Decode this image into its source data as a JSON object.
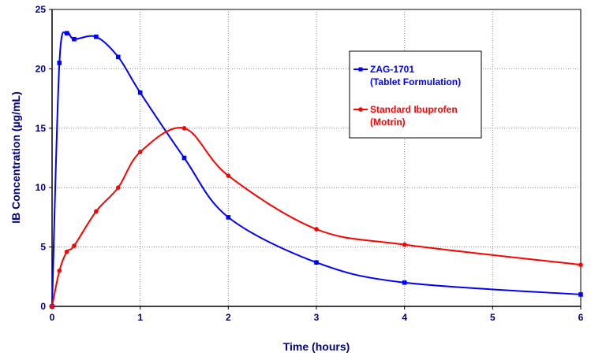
{
  "chart_data": {
    "type": "line",
    "title": "",
    "xlabel": "Time (hours)",
    "ylabel": "IB Concentration (µg/mL)",
    "xlim": [
      0,
      6
    ],
    "ylim": [
      0,
      25
    ],
    "x_ticks": [
      0,
      1,
      2,
      3,
      4,
      5,
      6
    ],
    "y_ticks": [
      0,
      5,
      10,
      15,
      20,
      25
    ],
    "grid": true,
    "legend_position": "top-right",
    "series": [
      {
        "name_line1": "ZAG-1701",
        "name_line2": "(Tablet Formulation)",
        "color": "#0000ff",
        "marker": "square",
        "x": [
          0,
          0.083,
          0.167,
          0.25,
          0.5,
          0.75,
          1,
          1.5,
          2,
          3,
          4,
          6
        ],
        "y": [
          0,
          20.5,
          23.0,
          22.5,
          22.7,
          21.0,
          18.0,
          12.5,
          7.5,
          3.7,
          2.0,
          1.0
        ]
      },
      {
        "name_line1": "Standard Ibuprofen",
        "name_line2": "(Motrin)",
        "color": "#ff0000",
        "marker": "circle",
        "x": [
          0,
          0.083,
          0.167,
          0.25,
          0.5,
          0.75,
          1,
          1.5,
          2,
          3,
          4,
          6
        ],
        "y": [
          0,
          3.0,
          4.6,
          5.1,
          8.0,
          10.0,
          13.0,
          15.0,
          11.0,
          6.5,
          5.2,
          3.5
        ]
      }
    ]
  }
}
